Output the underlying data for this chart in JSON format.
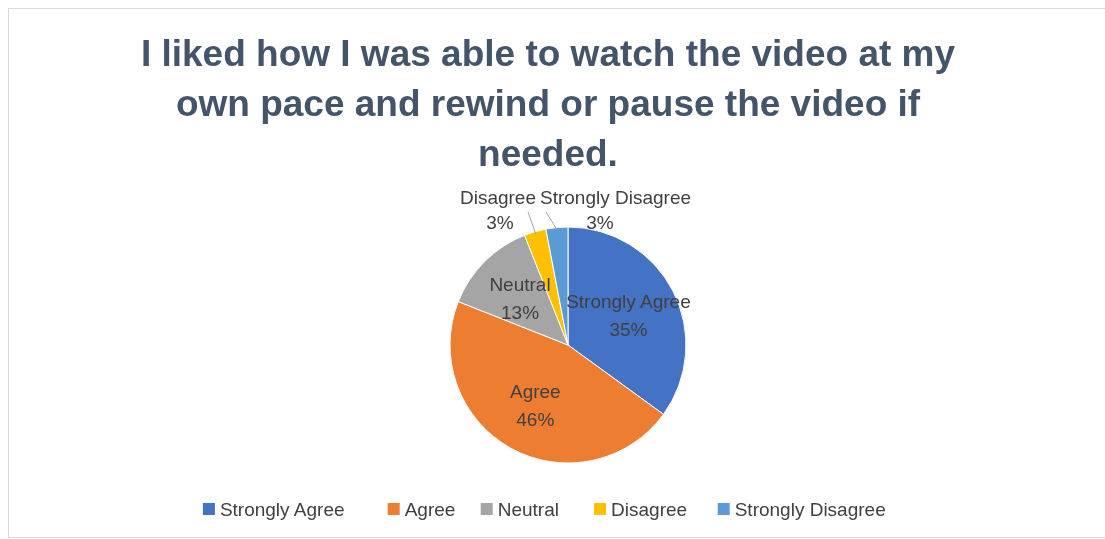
{
  "chart_data": {
    "type": "pie",
    "title": "I liked how I was able to watch the video at my own pace and rewind or pause the video if needed.",
    "categories": [
      "Strongly Agree",
      "Agree",
      "Neutral",
      "Disagree",
      "Strongly Disagree"
    ],
    "values": [
      35,
      46,
      13,
      3,
      3
    ],
    "colors": [
      "#4472c4",
      "#ed7d31",
      "#a5a5a5",
      "#ffc000",
      "#5b9bd5"
    ],
    "value_labels": [
      "35%",
      "46%",
      "13%",
      "3%",
      "3%"
    ],
    "legend": "bottom"
  }
}
